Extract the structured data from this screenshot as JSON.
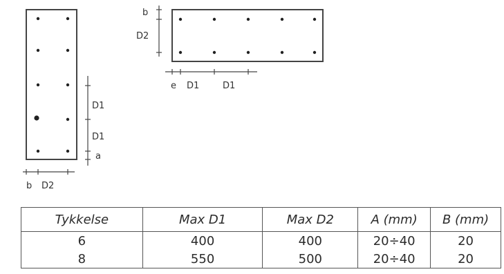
{
  "diagram_left": {
    "dims": {
      "d1_upper": "D1",
      "d1_lower": "D1",
      "a": "a",
      "b": "b",
      "d2": "D2"
    }
  },
  "diagram_right": {
    "dims": {
      "b": "b",
      "d2": "D2",
      "e": "e",
      "d1_first": "D1",
      "d1_second": "D1"
    }
  },
  "table": {
    "headers": [
      "Tykkelse",
      "Max D1",
      "Max D2",
      "A (mm)",
      "B (mm)"
    ],
    "rows": [
      [
        "6",
        "400",
        "400",
        "20÷40",
        "20"
      ],
      [
        "8",
        "550",
        "500",
        "20÷40",
        "20"
      ]
    ]
  }
}
